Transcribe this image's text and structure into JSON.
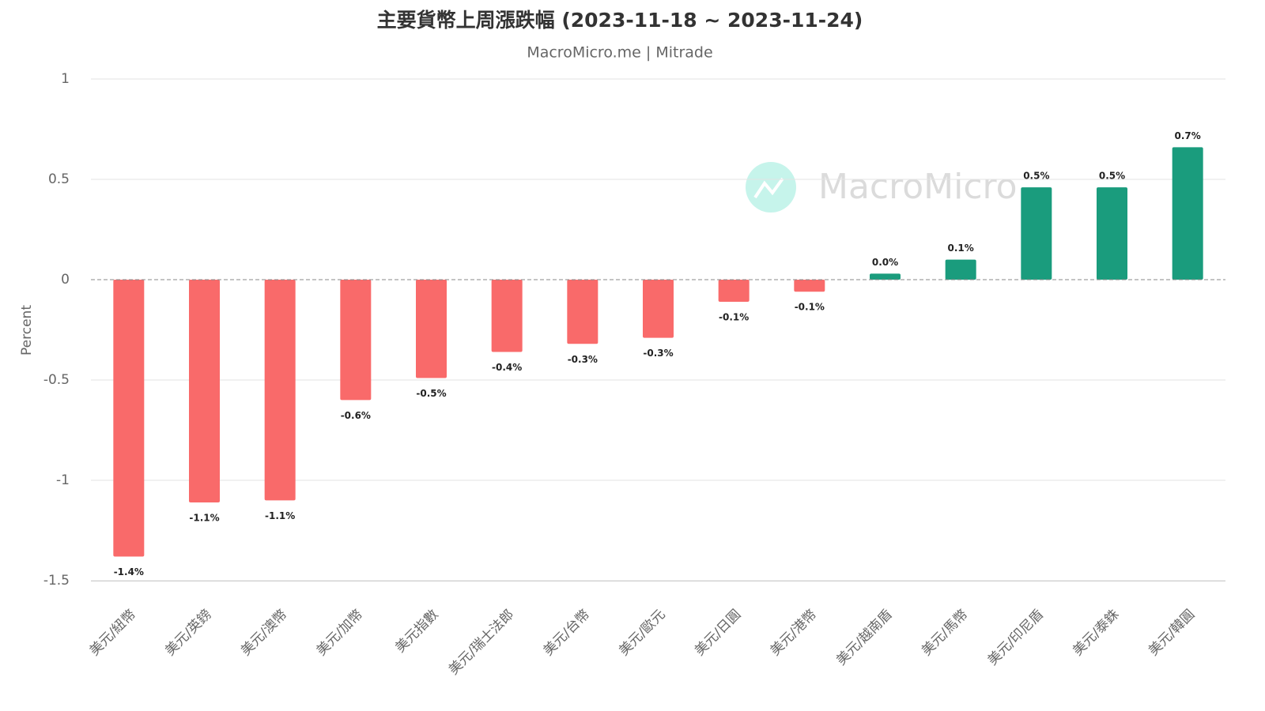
{
  "chart_data": {
    "type": "bar",
    "title": "主要貨幣上周漲跌幅 (2023-11-18 ~ 2023-11-24)",
    "subtitle": "MacroMicro.me | Mitrade",
    "watermark": "MacroMicro",
    "y_axis_label": "Percent",
    "categories": [
      "美元/紐幣",
      "美元/英鎊",
      "美元/澳幣",
      "美元/加幣",
      "美元指數",
      "美元/瑞士法郎",
      "美元/台幣",
      "美元/歐元",
      "美元/日圓",
      "美元/港幣",
      "美元/越南盾",
      "美元/馬幣",
      "美元/印尼盾",
      "美元/泰銖",
      "美元/韓圓"
    ],
    "values": [
      -1.38,
      -1.11,
      -1.1,
      -0.6,
      -0.49,
      -0.36,
      -0.32,
      -0.29,
      -0.11,
      -0.06,
      0.03,
      0.1,
      0.46,
      0.46,
      0.66
    ],
    "value_labels": [
      "-1.4%",
      "-1.1%",
      "-1.1%",
      "-0.6%",
      "-0.5%",
      "-0.4%",
      "-0.3%",
      "-0.3%",
      "-0.1%",
      "-0.1%",
      "0.0%",
      "0.1%",
      "0.5%",
      "0.5%",
      "0.7%"
    ],
    "positive_color": "#1a9c7d",
    "negative_color": "#f96a6a",
    "ylim": [
      -1.5,
      1
    ],
    "yticks": [
      1,
      0.5,
      0,
      -0.5,
      -1,
      -1.5
    ],
    "grid": true
  }
}
